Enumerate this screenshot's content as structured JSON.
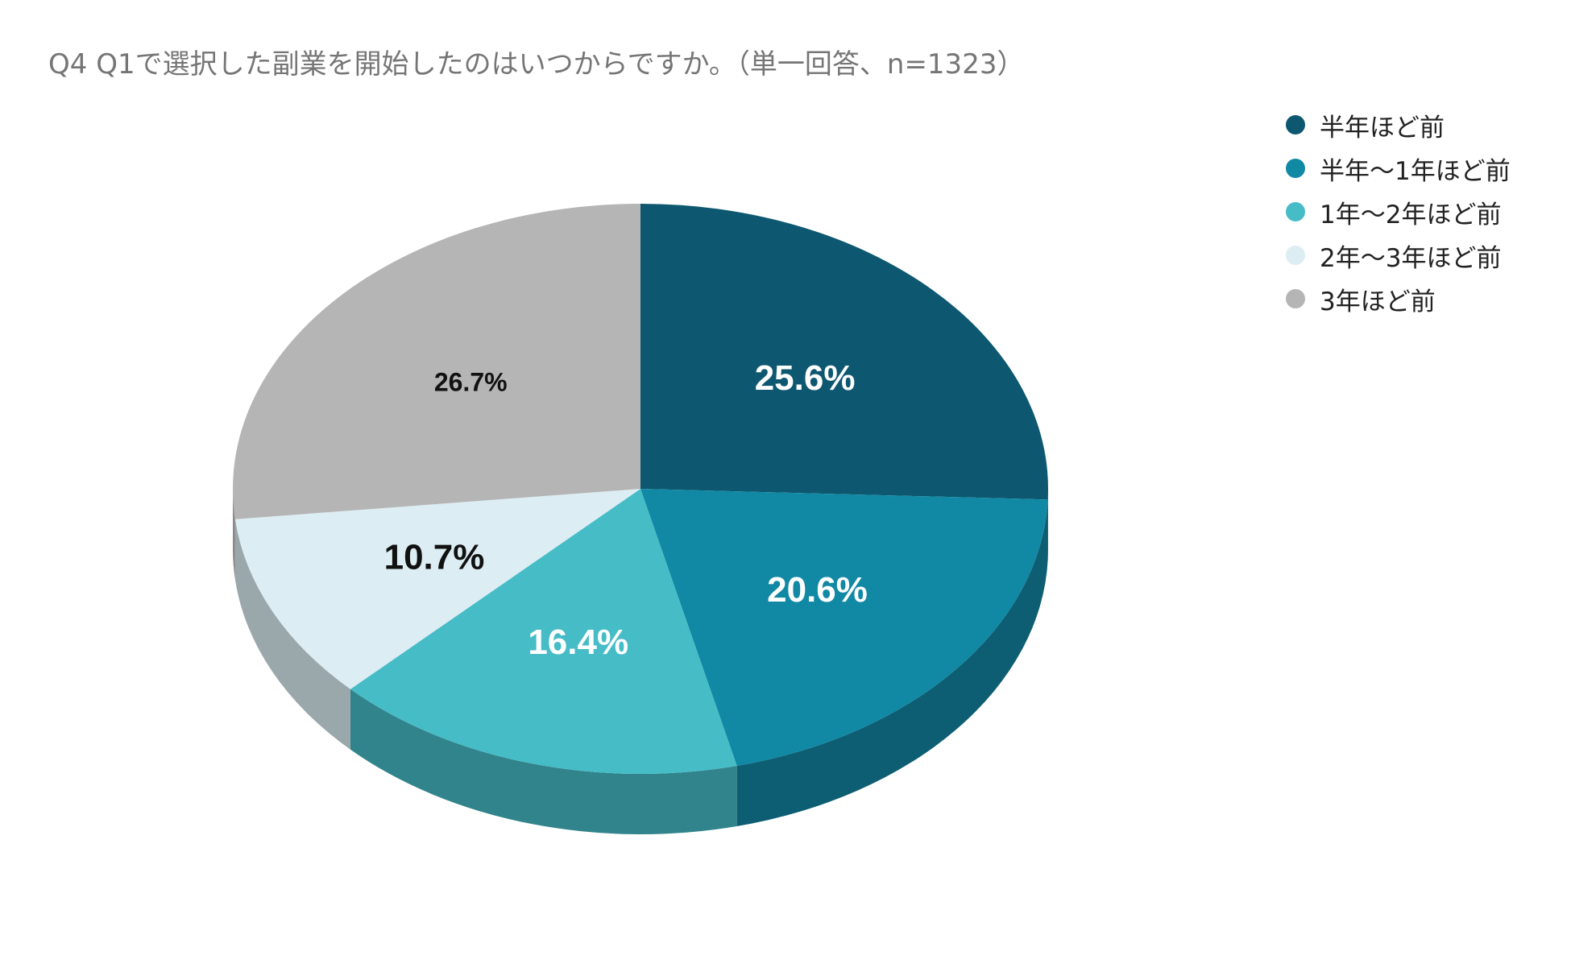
{
  "chart_data": {
    "type": "pie",
    "title": "Q4 Q1で選択した副業を開始したのはいつからですか。（単一回答、n=1323）",
    "legend_position": "top-right",
    "slices": [
      {
        "name": "半年ほど前",
        "value": 25.6,
        "label": "25.6%",
        "color": "#0d5870",
        "side_color": "#0b4d61",
        "label_color": "#ffffff"
      },
      {
        "name": "半年〜1年ほど前",
        "value": 20.6,
        "label": "20.6%",
        "color": "#1189a4",
        "side_color": "#0d5e72",
        "label_color": "#ffffff"
      },
      {
        "name": "1年〜2年ほど前",
        "value": 16.4,
        "label": "16.4%",
        "color": "#46bcc7",
        "side_color": "#31848b",
        "label_color": "#ffffff"
      },
      {
        "name": "2年〜3年ほど前",
        "value": 10.7,
        "label": "10.7%",
        "color": "#dcedf3",
        "side_color": "#9aa7ab",
        "label_color": "#111111"
      },
      {
        "name": "3年ほど前",
        "value": 26.7,
        "label": "26.7%",
        "color": "#b5b5b5",
        "side_color": "#8a8a8a",
        "label_color": "#111111"
      }
    ]
  }
}
